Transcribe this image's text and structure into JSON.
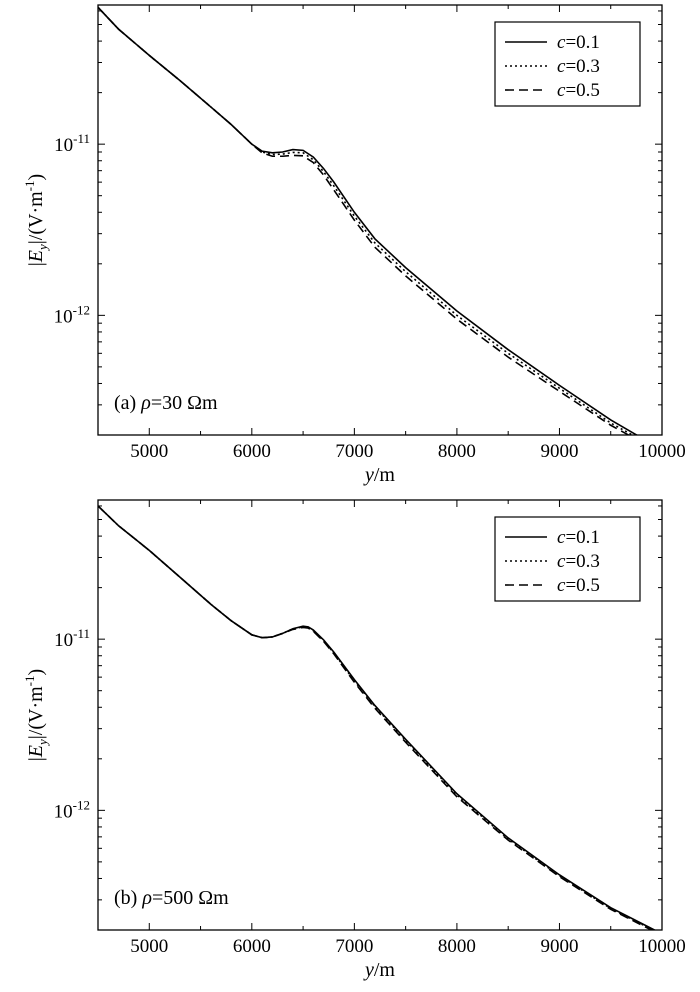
{
  "chart_data": [
    {
      "type": "line",
      "annotation": {
        "prefix": "(a) ",
        "symbol": "ρ",
        "value": "=30 Ωm"
      },
      "xlabel": {
        "var": "y",
        "unit": "/m"
      },
      "ylabel": "|Ey|/(V·m-1)",
      "ylabel_parts": {
        "bar1": "|",
        "var": "E",
        "sub": "y",
        "rest": "|/(V·m",
        "sup": "-1",
        "close": ")"
      },
      "xlim": [
        4500,
        10000
      ],
      "ylim": [
        2e-13,
        6.5e-11
      ],
      "yscale": "log",
      "x_ticks": [
        5000,
        6000,
        7000,
        8000,
        9000,
        10000
      ],
      "y_ticks": [
        {
          "value": 1e-11,
          "base": "10",
          "exp": "-11"
        },
        {
          "value": 1e-12,
          "base": "10",
          "exp": "-12"
        }
      ],
      "legend": {
        "position": "top-right"
      },
      "series": [
        {
          "name": "c=0.1",
          "label_var": "c",
          "label_val": "=0.1",
          "dash": "solid",
          "x": [
            4500,
            4700,
            5000,
            5300,
            5600,
            5800,
            6000,
            6100,
            6200,
            6300,
            6400,
            6500,
            6600,
            6700,
            6800,
            7000,
            7200,
            7500,
            8000,
            8500,
            9000,
            9500,
            9850
          ],
          "y": [
            6.3e-11,
            4.7e-11,
            3.3e-11,
            2.35e-11,
            1.65e-11,
            1.3e-11,
            1e-11,
            9.1e-12,
            8.9e-12,
            9e-12,
            9.3e-12,
            9.2e-12,
            8.4e-12,
            7.2e-12,
            6e-12,
            4e-12,
            2.8e-12,
            1.9e-12,
            1.06e-12,
            6.3e-13,
            3.9e-13,
            2.45e-13,
            1.85e-13
          ]
        },
        {
          "name": "c=0.3",
          "label_var": "c",
          "label_val": "=0.3",
          "dash": "dotted",
          "x": [
            4500,
            4700,
            5000,
            5300,
            5600,
            5800,
            6000,
            6100,
            6200,
            6300,
            6400,
            6500,
            6600,
            6700,
            6800,
            7000,
            7200,
            7500,
            8000,
            8500,
            9000,
            9500,
            9850
          ],
          "y": [
            6.3e-11,
            4.7e-11,
            3.3e-11,
            2.35e-11,
            1.65e-11,
            1.3e-11,
            1e-11,
            9e-12,
            8.7e-12,
            8.75e-12,
            8.95e-12,
            8.9e-12,
            8.1e-12,
            6.9e-12,
            5.7e-12,
            3.8e-12,
            2.65e-12,
            1.8e-12,
            1e-12,
            6e-13,
            3.75e-13,
            2.35e-13,
            1.8e-13
          ]
        },
        {
          "name": "c=0.5",
          "label_var": "c",
          "label_val": "=0.5",
          "dash": "dashed",
          "x": [
            4500,
            4700,
            5000,
            5300,
            5600,
            5800,
            6000,
            6100,
            6200,
            6300,
            6400,
            6500,
            6600,
            6700,
            6800,
            7000,
            7200,
            7500,
            8000,
            8500,
            9000,
            9500,
            9850
          ],
          "y": [
            6.3e-11,
            4.7e-11,
            3.3e-11,
            2.35e-11,
            1.65e-11,
            1.3e-11,
            1e-11,
            8.9e-12,
            8.5e-12,
            8.5e-12,
            8.6e-12,
            8.55e-12,
            7.8e-12,
            6.6e-12,
            5.4e-12,
            3.6e-12,
            2.5e-12,
            1.7e-12,
            9.5e-13,
            5.7e-13,
            3.6e-13,
            2.28e-13,
            1.75e-13
          ]
        }
      ]
    },
    {
      "type": "line",
      "annotation": {
        "prefix": "(b) ",
        "symbol": "ρ",
        "value": "=500 Ωm"
      },
      "xlabel": {
        "var": "y",
        "unit": "/m"
      },
      "ylabel": "|Ey|/(V·m-1)",
      "ylabel_parts": {
        "bar1": "|",
        "var": "E",
        "sub": "y",
        "rest": "|/(V·m",
        "sup": "-1",
        "close": ")"
      },
      "xlim": [
        4500,
        10000
      ],
      "ylim": [
        2e-13,
        6.5e-11
      ],
      "yscale": "log",
      "x_ticks": [
        5000,
        6000,
        7000,
        8000,
        9000,
        10000
      ],
      "y_ticks": [
        {
          "value": 1e-11,
          "base": "10",
          "exp": "-11"
        },
        {
          "value": 1e-12,
          "base": "10",
          "exp": "-12"
        }
      ],
      "legend": {
        "position": "top-right"
      },
      "series": [
        {
          "name": "c=0.1",
          "label_var": "c",
          "label_val": "=0.1",
          "dash": "solid",
          "x": [
            4500,
            4700,
            5000,
            5300,
            5600,
            5800,
            6000,
            6100,
            6200,
            6300,
            6400,
            6500,
            6550,
            6600,
            6700,
            6800,
            7000,
            7200,
            7500,
            8000,
            8500,
            9000,
            9500,
            10000
          ],
          "y": [
            6e-11,
            4.6e-11,
            3.3e-11,
            2.3e-11,
            1.6e-11,
            1.28e-11,
            1.06e-11,
            1.02e-11,
            1.03e-11,
            1.08e-11,
            1.15e-11,
            1.19e-11,
            1.18e-11,
            1.13e-11,
            9.9e-12,
            8.4e-12,
            5.8e-12,
            4.1e-12,
            2.6e-12,
            1.25e-12,
            6.9e-13,
            4.2e-13,
            2.7e-13,
            1.9e-13
          ]
        },
        {
          "name": "c=0.3",
          "label_var": "c",
          "label_val": "=0.3",
          "dash": "dotted",
          "x": [
            4500,
            4700,
            5000,
            5300,
            5600,
            5800,
            6000,
            6100,
            6200,
            6300,
            6400,
            6500,
            6550,
            6600,
            6700,
            6800,
            7000,
            7200,
            7500,
            8000,
            8500,
            9000,
            9500,
            10000
          ],
          "y": [
            6e-11,
            4.6e-11,
            3.3e-11,
            2.3e-11,
            1.6e-11,
            1.28e-11,
            1.06e-11,
            1.02e-11,
            1.03e-11,
            1.08e-11,
            1.15e-11,
            1.18e-11,
            1.17e-11,
            1.12e-11,
            9.8e-12,
            8.3e-12,
            5.7e-12,
            4.05e-12,
            2.56e-12,
            1.23e-12,
            6.8e-13,
            4.15e-13,
            2.67e-13,
            1.88e-13
          ]
        },
        {
          "name": "c=0.5",
          "label_var": "c",
          "label_val": "=0.5",
          "dash": "dashed",
          "x": [
            4500,
            4700,
            5000,
            5300,
            5600,
            5800,
            6000,
            6100,
            6200,
            6300,
            6400,
            6500,
            6550,
            6600,
            6700,
            6800,
            7000,
            7200,
            7500,
            8000,
            8500,
            9000,
            9500,
            10000
          ],
          "y": [
            6e-11,
            4.6e-11,
            3.3e-11,
            2.3e-11,
            1.6e-11,
            1.28e-11,
            1.06e-11,
            1.02e-11,
            1.03e-11,
            1.08e-11,
            1.14e-11,
            1.17e-11,
            1.16e-11,
            1.11e-11,
            9.7e-12,
            8.2e-12,
            5.6e-12,
            3.95e-12,
            2.5e-12,
            1.2e-12,
            6.7e-13,
            4.1e-13,
            2.64e-13,
            1.86e-13
          ]
        }
      ]
    }
  ]
}
